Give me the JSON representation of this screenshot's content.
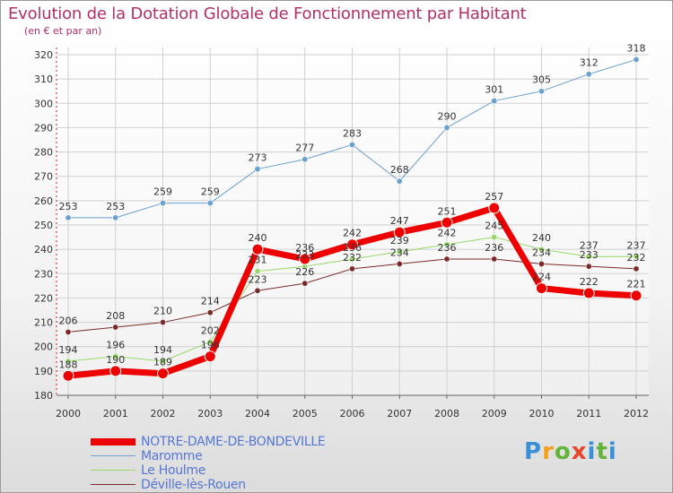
{
  "chart_data": {
    "type": "line",
    "title": "Evolution de la Dotation Globale de Fonctionnement par Habitant",
    "subtitle": "(en € et par an)",
    "x": [
      "2000",
      "2001",
      "2002",
      "2003",
      "2004",
      "2005",
      "2006",
      "2007",
      "2008",
      "2009",
      "2010",
      "2011",
      "2012"
    ],
    "ylim": [
      180,
      320
    ],
    "yticks": [
      180,
      190,
      200,
      210,
      220,
      230,
      240,
      250,
      260,
      270,
      280,
      290,
      300,
      310,
      320
    ],
    "series": [
      {
        "name": "NOTRE-DAME-DE-BONDEVILLE",
        "color": "#ee0000",
        "values": [
          188,
          190,
          189,
          196,
          240,
          236,
          242,
          247,
          251,
          257,
          224,
          222,
          221
        ]
      },
      {
        "name": "Maromme",
        "color": "#6aa0d0",
        "values": [
          253,
          253,
          259,
          259,
          273,
          277,
          283,
          268,
          290,
          301,
          305,
          312,
          318
        ]
      },
      {
        "name": "Le Houlme",
        "color": "#98d86a",
        "values": [
          194,
          196,
          194,
          202,
          231,
          233,
          236,
          239,
          242,
          245,
          240,
          237,
          237
        ]
      },
      {
        "name": "Déville-lès-Rouen",
        "color": "#7a2a2a",
        "values": [
          206,
          208,
          210,
          214,
          223,
          226,
          232,
          234,
          236,
          236,
          234,
          233,
          232
        ]
      }
    ]
  },
  "logo": {
    "p": "P",
    "r": "r",
    "o": "o",
    "x": "x",
    "i": "i",
    "t": "t",
    "i2": "i"
  }
}
